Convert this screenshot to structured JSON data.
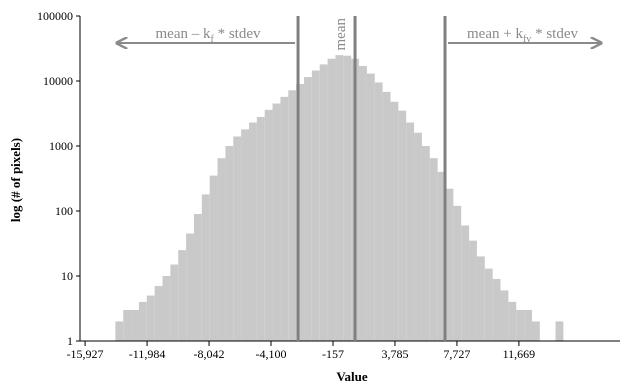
{
  "chart_data": {
    "type": "histogram",
    "x_label": "Value",
    "y_label": "log (# of pixels)",
    "bins": [
      -14000,
      -13500,
      -13000,
      -12500,
      -12000,
      -11500,
      -11000,
      -10500,
      -10000,
      -9500,
      -9000,
      -8500,
      -8000,
      -7500,
      -7000,
      -6500,
      -6000,
      -5500,
      -5000,
      -4500,
      -4000,
      -3500,
      -3000,
      -2500,
      -2000,
      -1500,
      -1000,
      -500,
      0,
      500,
      1000,
      1500,
      2000,
      2500,
      3000,
      3500,
      4000,
      4500,
      5000,
      5500,
      6000,
      6500,
      7000,
      7500,
      8000,
      8500,
      9000,
      9500,
      10000,
      10500,
      11000,
      11500,
      12000,
      12500,
      13000,
      13500,
      14000,
      14500
    ],
    "values": [
      2,
      3,
      3,
      4,
      5,
      7,
      10,
      15,
      25,
      45,
      90,
      180,
      350,
      650,
      1000,
      1400,
      1800,
      2300,
      2800,
      3600,
      4500,
      5700,
      7200,
      9000,
      11500,
      14500,
      18000,
      22000,
      25000,
      24500,
      22000,
      17000,
      13000,
      9500,
      6800,
      4800,
      3500,
      2300,
      1600,
      1000,
      650,
      400,
      220,
      120,
      60,
      35,
      20,
      13,
      9,
      6,
      4,
      3,
      3,
      2,
      1,
      1,
      2
    ],
    "color": "#c9c9c9",
    "xlim": [
      -16250,
      18100
    ],
    "xticks": [
      {
        "value": -15927,
        "label": "-15,927"
      },
      {
        "value": -11984,
        "label": "-11,984"
      },
      {
        "value": -8042,
        "label": "-8,042"
      },
      {
        "value": -4100,
        "label": "-4,100"
      },
      -157,
      {
        "value": 3785,
        "label": "3,785"
      },
      {
        "value": 7727,
        "label": "7,727"
      },
      {
        "value": 11669,
        "label": "11,669"
      }
    ],
    "ylim": [
      1,
      100000
    ],
    "yscale": "log",
    "yticks": [
      1,
      10,
      100,
      1000,
      10000,
      100000
    ],
    "annotations": [
      {
        "x": -2380,
        "text": [
          "mean – k",
          "f",
          " * stdev"
        ],
        "arrow": "left"
      },
      {
        "x": 1245,
        "text": "mean"
      },
      {
        "x": 6969,
        "text": [
          "mean + k",
          "fv",
          " * stdev"
        ],
        "arrow": "right"
      }
    ],
    "line_color": "#808080"
  }
}
